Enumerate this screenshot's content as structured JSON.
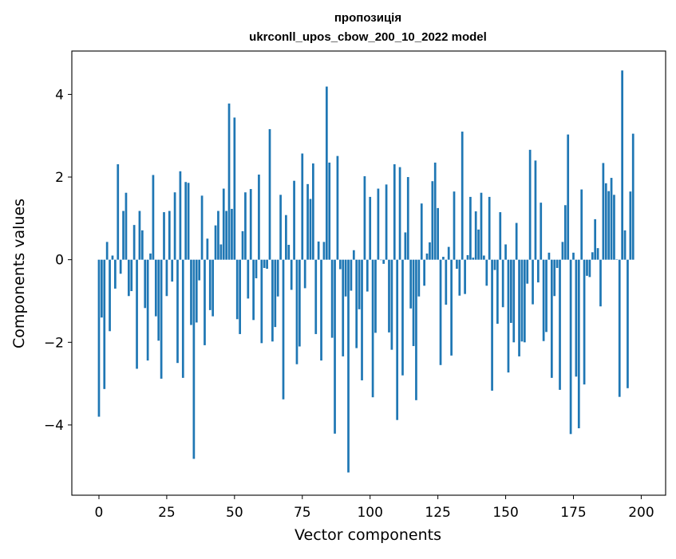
{
  "chart_data": {
    "type": "bar",
    "title_line1": "пропозиція",
    "title_line2": "ukrconll_upos_cbow_200_10_2022 model",
    "xlabel": "Vector components",
    "ylabel": "Components values",
    "xlim": [
      -10,
      209
    ],
    "ylim": [
      -5.7,
      5.05
    ],
    "x_ticks": [
      0,
      25,
      50,
      75,
      100,
      125,
      150,
      175,
      200
    ],
    "x_tick_labels": [
      "0",
      "25",
      "50",
      "75",
      "100",
      "125",
      "150",
      "175",
      "200"
    ],
    "y_ticks": [
      4,
      2,
      0,
      -2,
      -4
    ],
    "y_tick_labels": [
      "4",
      "2",
      "0",
      "−2",
      "−4"
    ],
    "bar_color": "#1f77b4",
    "values": [
      -3.8,
      -1.4,
      -3.13,
      0.43,
      -1.73,
      0.1,
      -0.7,
      2.31,
      -0.34,
      1.18,
      1.62,
      -0.88,
      -0.76,
      0.84,
      -2.64,
      1.18,
      0.71,
      -1.17,
      -2.44,
      0.15,
      2.05,
      -1.37,
      -1.96,
      -2.88,
      1.15,
      -0.88,
      1.18,
      -0.53,
      1.63,
      -2.5,
      2.14,
      -2.86,
      1.88,
      1.86,
      -1.58,
      -4.82,
      -1.52,
      -0.5,
      1.55,
      -2.07,
      0.51,
      -1.22,
      -1.37,
      0.83,
      1.18,
      0.37,
      1.72,
      1.18,
      3.78,
      1.23,
      3.44,
      -1.44,
      -1.8,
      0.69,
      1.63,
      -0.94,
      1.71,
      -1.46,
      -0.45,
      2.06,
      -2.02,
      -0.2,
      -0.22,
      3.16,
      -1.98,
      -1.63,
      -0.89,
      1.57,
      -3.38,
      1.08,
      0.36,
      -0.73,
      1.91,
      -2.53,
      -2.1,
      2.57,
      -0.69,
      1.83,
      1.47,
      2.33,
      -1.8,
      0.44,
      -2.44,
      0.43,
      4.19,
      2.35,
      -1.89,
      -4.21,
      2.51,
      -0.23,
      -2.34,
      -0.89,
      -5.15,
      -0.75,
      0.23,
      -2.14,
      -1.2,
      -2.92,
      2.02,
      -0.77,
      1.52,
      -3.33,
      -1.77,
      1.72,
      -0.01,
      -0.1,
      1.82,
      -1.76,
      -2.18,
      2.31,
      -3.88,
      2.24,
      -2.8,
      0.66,
      2.0,
      -1.18,
      -2.09,
      -3.4,
      -0.89,
      1.36,
      -0.63,
      0.15,
      0.42,
      1.9,
      2.35,
      1.25,
      -2.55,
      0.07,
      -1.09,
      0.31,
      -2.32,
      1.65,
      -0.22,
      -0.87,
      3.1,
      -0.83,
      0.11,
      1.52,
      0.05,
      1.17,
      0.73,
      1.62,
      0.1,
      -0.63,
      1.52,
      -3.17,
      -0.25,
      -1.55,
      1.15,
      -1.15,
      0.37,
      -2.73,
      -1.53,
      -2.0,
      0.89,
      -2.34,
      -1.98,
      -2.0,
      -0.58,
      2.66,
      -1.08,
      2.4,
      -0.55,
      1.38,
      -1.97,
      -1.75,
      0.17,
      -2.86,
      -0.88,
      -0.2,
      -3.15,
      0.43,
      1.32,
      3.03,
      -4.22,
      0.17,
      -2.83,
      -4.08,
      1.7,
      -3.02,
      -0.39,
      -0.42,
      0.18,
      0.98,
      0.28,
      -1.13,
      2.34,
      1.85,
      1.66,
      1.98,
      1.57,
      0.01,
      -3.32,
      4.58,
      0.71,
      -3.11,
      1.65,
      3.05
    ]
  }
}
